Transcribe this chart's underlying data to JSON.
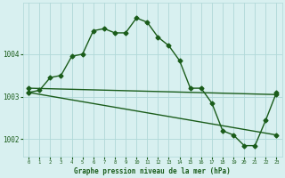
{
  "background_color": "#d8f0f0",
  "grid_color": "#b0d8d8",
  "line_color": "#1a5c1a",
  "title": "Graphe pression niveau de la mer (hPa)",
  "xlim": [
    -0.5,
    23.5
  ],
  "ylim": [
    1001.6,
    1005.2
  ],
  "xticks": [
    0,
    1,
    2,
    3,
    4,
    5,
    6,
    7,
    8,
    9,
    10,
    11,
    12,
    13,
    14,
    15,
    16,
    17,
    18,
    19,
    20,
    21,
    22,
    23
  ],
  "ytick_values": [
    1002,
    1003,
    1004
  ],
  "series": [
    {
      "x": [
        0,
        1,
        2,
        3,
        4,
        5,
        6,
        7,
        8,
        9,
        10,
        11,
        12,
        13,
        14,
        15,
        16,
        17,
        18,
        19,
        20,
        21,
        22,
        23
      ],
      "y": [
        1003.1,
        1003.15,
        1003.45,
        1003.5,
        1003.95,
        1004.0,
        1004.55,
        1004.6,
        1004.5,
        1004.5,
        1004.85,
        1004.75,
        1004.4,
        1004.2,
        1003.85,
        1003.2,
        1003.2,
        1002.85,
        1002.2,
        1002.1,
        1001.85,
        1001.85,
        1002.45,
        1003.1
      ],
      "marker": "D",
      "markersize": 2.5,
      "linewidth": 1.0
    },
    {
      "x": [
        0,
        23
      ],
      "y": [
        1003.2,
        1003.05
      ],
      "marker": "D",
      "markersize": 2.5,
      "linewidth": 1.0
    },
    {
      "x": [
        0,
        23
      ],
      "y": [
        1003.1,
        1002.1
      ],
      "marker": "D",
      "markersize": 2.5,
      "linewidth": 1.0
    }
  ]
}
